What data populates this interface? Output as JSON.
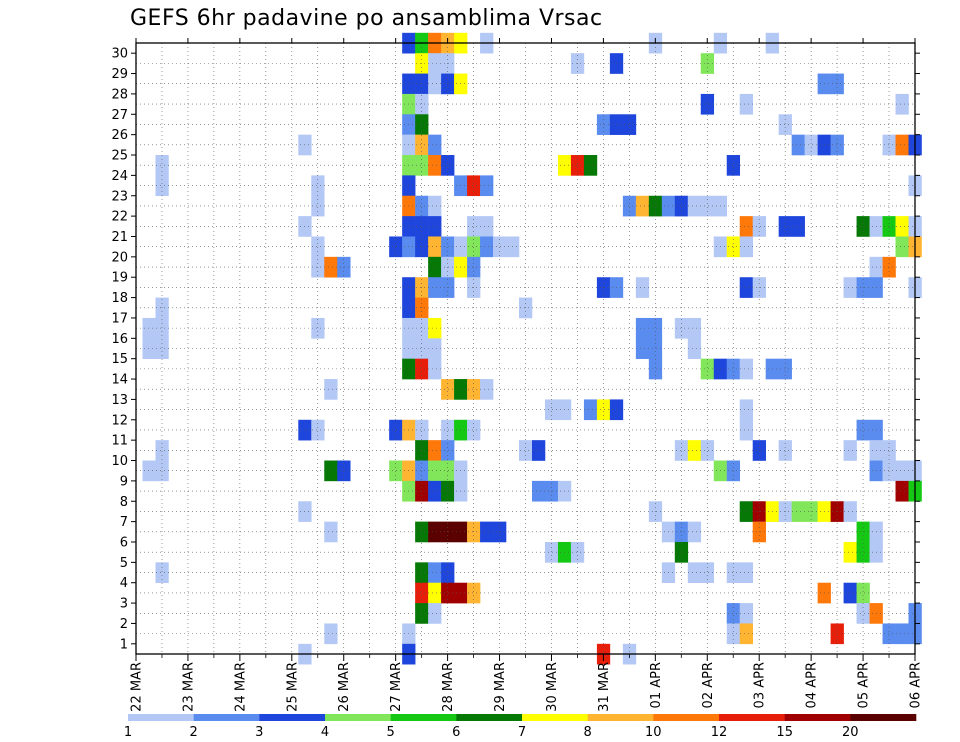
{
  "chart_data": {
    "type": "heatmap",
    "title": "GEFS 6hr padavine po ansamblima Vrsac",
    "xlabel": "",
    "ylabel": "",
    "x_tick_labels": [
      "22 MAR",
      "23 MAR",
      "24 MAR",
      "25 MAR",
      "26 MAR",
      "27 MAR",
      "28 MAR",
      "29 MAR",
      "30 MAR",
      "31 MAR",
      "01 APR",
      "02 APR",
      "03 APR",
      "04 APR",
      "05 APR",
      "06 APR"
    ],
    "y_tick_labels": [
      "1",
      "2",
      "3",
      "4",
      "5",
      "6",
      "7",
      "8",
      "9",
      "10",
      "11",
      "12",
      "13",
      "14",
      "15",
      "16",
      "17",
      "18",
      "19",
      "20",
      "21",
      "22",
      "23",
      "24",
      "25",
      "26",
      "27",
      "28",
      "29",
      "30"
    ],
    "x_range": [
      0,
      60
    ],
    "y_range": [
      0,
      30
    ],
    "grid": true,
    "legend": {
      "placement": "bottom",
      "labels": [
        "1",
        "2",
        "3",
        "4",
        "5",
        "6",
        "7",
        "8",
        "10",
        "12",
        "15",
        "20"
      ],
      "colors": [
        "#b4c8f5",
        "#5a8cf0",
        "#1e46dc",
        "#82e65a",
        "#14c814",
        "#057805",
        "#ffff00",
        "#ffb432",
        "#ff780a",
        "#e61e0a",
        "#a00000",
        "#5a0000"
      ]
    },
    "cells": [
      [
        30,
        21,
        3
      ],
      [
        30,
        22,
        5
      ],
      [
        30,
        23,
        10
      ],
      [
        30,
        24,
        8
      ],
      [
        30,
        25,
        7
      ],
      [
        30,
        27,
        1
      ],
      [
        30,
        40,
        1
      ],
      [
        30,
        45,
        1
      ],
      [
        30,
        49,
        1
      ],
      [
        29,
        22,
        7
      ],
      [
        29,
        23,
        1
      ],
      [
        29,
        24,
        1
      ],
      [
        29,
        34,
        1
      ],
      [
        29,
        37,
        3
      ],
      [
        29,
        44,
        4
      ],
      [
        28,
        21,
        3
      ],
      [
        28,
        22,
        3
      ],
      [
        28,
        23,
        1
      ],
      [
        28,
        24,
        3
      ],
      [
        28,
        25,
        7
      ],
      [
        28,
        53,
        2
      ],
      [
        28,
        54,
        2
      ],
      [
        27,
        21,
        4
      ],
      [
        27,
        22,
        1
      ],
      [
        27,
        44,
        3
      ],
      [
        27,
        47,
        1
      ],
      [
        27,
        59,
        1
      ],
      [
        26,
        21,
        2
      ],
      [
        26,
        22,
        6
      ],
      [
        26,
        36,
        2
      ],
      [
        26,
        37,
        3
      ],
      [
        26,
        38,
        3
      ],
      [
        26,
        50,
        1
      ],
      [
        25,
        13,
        1
      ],
      [
        25,
        21,
        1
      ],
      [
        25,
        22,
        8
      ],
      [
        25,
        23,
        2
      ],
      [
        25,
        51,
        2
      ],
      [
        25,
        52,
        1
      ],
      [
        25,
        53,
        3
      ],
      [
        25,
        54,
        2
      ],
      [
        25,
        58,
        1
      ],
      [
        25,
        59,
        10
      ],
      [
        25,
        60,
        3
      ],
      [
        24,
        2,
        1
      ],
      [
        24,
        21,
        4
      ],
      [
        24,
        22,
        4
      ],
      [
        24,
        23,
        10
      ],
      [
        24,
        24,
        3
      ],
      [
        24,
        33,
        7
      ],
      [
        24,
        34,
        12
      ],
      [
        24,
        35,
        6
      ],
      [
        24,
        46,
        3
      ],
      [
        23,
        2,
        1
      ],
      [
        23,
        14,
        1
      ],
      [
        23,
        21,
        3
      ],
      [
        23,
        25,
        2
      ],
      [
        23,
        26,
        12
      ],
      [
        23,
        27,
        2
      ],
      [
        23,
        60,
        1
      ],
      [
        22,
        14,
        1
      ],
      [
        22,
        21,
        10
      ],
      [
        22,
        22,
        2
      ],
      [
        22,
        23,
        1
      ],
      [
        22,
        38,
        2
      ],
      [
        22,
        39,
        8
      ],
      [
        22,
        40,
        6
      ],
      [
        22,
        41,
        2
      ],
      [
        22,
        42,
        3
      ],
      [
        22,
        43,
        1
      ],
      [
        22,
        44,
        1
      ],
      [
        22,
        45,
        1
      ],
      [
        21,
        13,
        1
      ],
      [
        21,
        21,
        3
      ],
      [
        21,
        22,
        3
      ],
      [
        21,
        23,
        3
      ],
      [
        21,
        26,
        1
      ],
      [
        21,
        27,
        1
      ],
      [
        21,
        47,
        10
      ],
      [
        21,
        48,
        1
      ],
      [
        21,
        50,
        3
      ],
      [
        21,
        51,
        3
      ],
      [
        21,
        56,
        6
      ],
      [
        21,
        57,
        1
      ],
      [
        21,
        58,
        5
      ],
      [
        21,
        59,
        7
      ],
      [
        21,
        60,
        1
      ],
      [
        20,
        14,
        1
      ],
      [
        20,
        20,
        3
      ],
      [
        20,
        21,
        2
      ],
      [
        20,
        22,
        3
      ],
      [
        20,
        23,
        8
      ],
      [
        20,
        24,
        2
      ],
      [
        20,
        25,
        1
      ],
      [
        20,
        26,
        4
      ],
      [
        20,
        27,
        2
      ],
      [
        20,
        28,
        1
      ],
      [
        20,
        29,
        1
      ],
      [
        20,
        45,
        1
      ],
      [
        20,
        46,
        7
      ],
      [
        20,
        47,
        1
      ],
      [
        20,
        59,
        4
      ],
      [
        20,
        60,
        8
      ],
      [
        19,
        14,
        1
      ],
      [
        19,
        15,
        10
      ],
      [
        19,
        16,
        2
      ],
      [
        19,
        23,
        6
      ],
      [
        19,
        24,
        1
      ],
      [
        19,
        25,
        7
      ],
      [
        19,
        26,
        2
      ],
      [
        19,
        57,
        1
      ],
      [
        19,
        58,
        10
      ],
      [
        18,
        21,
        3
      ],
      [
        18,
        22,
        8
      ],
      [
        18,
        23,
        2
      ],
      [
        18,
        24,
        2
      ],
      [
        18,
        26,
        1
      ],
      [
        18,
        36,
        3
      ],
      [
        18,
        37,
        2
      ],
      [
        18,
        39,
        1
      ],
      [
        18,
        47,
        3
      ],
      [
        18,
        48,
        1
      ],
      [
        18,
        55,
        1
      ],
      [
        18,
        56,
        2
      ],
      [
        18,
        57,
        2
      ],
      [
        18,
        60,
        1
      ],
      [
        17,
        2,
        1
      ],
      [
        17,
        21,
        3
      ],
      [
        17,
        22,
        10
      ],
      [
        17,
        30,
        1
      ],
      [
        16,
        1,
        1
      ],
      [
        16,
        2,
        1
      ],
      [
        16,
        14,
        1
      ],
      [
        16,
        21,
        1
      ],
      [
        16,
        22,
        1
      ],
      [
        16,
        23,
        7
      ],
      [
        16,
        39,
        2
      ],
      [
        16,
        40,
        2
      ],
      [
        16,
        42,
        1
      ],
      [
        16,
        43,
        1
      ],
      [
        15,
        1,
        1
      ],
      [
        15,
        2,
        1
      ],
      [
        15,
        21,
        1
      ],
      [
        15,
        22,
        1
      ],
      [
        15,
        23,
        1
      ],
      [
        15,
        39,
        2
      ],
      [
        15,
        40,
        2
      ],
      [
        15,
        43,
        1
      ],
      [
        14,
        21,
        6
      ],
      [
        14,
        22,
        12
      ],
      [
        14,
        23,
        1
      ],
      [
        14,
        40,
        2
      ],
      [
        14,
        44,
        4
      ],
      [
        14,
        45,
        3
      ],
      [
        14,
        46,
        2
      ],
      [
        14,
        47,
        1
      ],
      [
        14,
        49,
        2
      ],
      [
        14,
        50,
        2
      ],
      [
        13,
        15,
        1
      ],
      [
        13,
        24,
        8
      ],
      [
        13,
        25,
        6
      ],
      [
        13,
        26,
        8
      ],
      [
        13,
        27,
        1
      ],
      [
        12,
        32,
        1
      ],
      [
        12,
        33,
        1
      ],
      [
        12,
        35,
        2
      ],
      [
        12,
        36,
        7
      ],
      [
        12,
        37,
        3
      ],
      [
        12,
        47,
        1
      ],
      [
        11,
        13,
        3
      ],
      [
        11,
        14,
        1
      ],
      [
        11,
        20,
        3
      ],
      [
        11,
        21,
        8
      ],
      [
        11,
        22,
        1
      ],
      [
        11,
        24,
        1
      ],
      [
        11,
        25,
        5
      ],
      [
        11,
        26,
        1
      ],
      [
        11,
        47,
        1
      ],
      [
        11,
        56,
        2
      ],
      [
        11,
        57,
        2
      ],
      [
        10,
        2,
        1
      ],
      [
        10,
        22,
        6
      ],
      [
        10,
        23,
        10
      ],
      [
        10,
        24,
        2
      ],
      [
        10,
        30,
        1
      ],
      [
        10,
        31,
        3
      ],
      [
        10,
        42,
        1
      ],
      [
        10,
        43,
        7
      ],
      [
        10,
        44,
        1
      ],
      [
        10,
        48,
        3
      ],
      [
        10,
        50,
        1
      ],
      [
        10,
        55,
        1
      ],
      [
        10,
        57,
        1
      ],
      [
        10,
        58,
        1
      ],
      [
        9,
        1,
        1
      ],
      [
        9,
        2,
        1
      ],
      [
        9,
        15,
        6
      ],
      [
        9,
        16,
        3
      ],
      [
        9,
        20,
        4
      ],
      [
        9,
        21,
        8
      ],
      [
        9,
        22,
        2
      ],
      [
        9,
        23,
        4
      ],
      [
        9,
        24,
        4
      ],
      [
        9,
        25,
        1
      ],
      [
        9,
        45,
        4
      ],
      [
        9,
        46,
        2
      ],
      [
        9,
        57,
        2
      ],
      [
        9,
        58,
        1
      ],
      [
        9,
        59,
        1
      ],
      [
        9,
        60,
        1
      ],
      [
        8,
        21,
        4
      ],
      [
        8,
        22,
        15
      ],
      [
        8,
        23,
        3
      ],
      [
        8,
        24,
        6
      ],
      [
        8,
        25,
        1
      ],
      [
        8,
        31,
        2
      ],
      [
        8,
        32,
        2
      ],
      [
        8,
        33,
        1
      ],
      [
        8,
        59,
        15
      ],
      [
        8,
        60,
        5
      ],
      [
        7,
        13,
        1
      ],
      [
        7,
        40,
        1
      ],
      [
        7,
        47,
        6
      ],
      [
        7,
        48,
        15
      ],
      [
        7,
        49,
        7
      ],
      [
        7,
        50,
        1
      ],
      [
        7,
        51,
        4
      ],
      [
        7,
        52,
        4
      ],
      [
        7,
        53,
        7
      ],
      [
        7,
        54,
        15
      ],
      [
        7,
        55,
        1
      ],
      [
        6,
        15,
        1
      ],
      [
        6,
        22,
        6
      ],
      [
        6,
        23,
        20
      ],
      [
        6,
        24,
        20
      ],
      [
        6,
        25,
        20
      ],
      [
        6,
        26,
        8
      ],
      [
        6,
        27,
        3
      ],
      [
        6,
        28,
        3
      ],
      [
        6,
        41,
        1
      ],
      [
        6,
        42,
        2
      ],
      [
        6,
        43,
        1
      ],
      [
        6,
        48,
        10
      ],
      [
        6,
        56,
        5
      ],
      [
        6,
        57,
        1
      ],
      [
        5,
        32,
        1
      ],
      [
        5,
        33,
        5
      ],
      [
        5,
        34,
        1
      ],
      [
        5,
        42,
        6
      ],
      [
        5,
        55,
        7
      ],
      [
        5,
        56,
        5
      ],
      [
        5,
        57,
        1
      ],
      [
        4,
        2,
        1
      ],
      [
        4,
        22,
        6
      ],
      [
        4,
        23,
        2
      ],
      [
        4,
        24,
        3
      ],
      [
        4,
        41,
        1
      ],
      [
        4,
        43,
        1
      ],
      [
        4,
        44,
        1
      ],
      [
        4,
        46,
        1
      ],
      [
        4,
        47,
        1
      ],
      [
        3,
        22,
        12
      ],
      [
        3,
        23,
        7
      ],
      [
        3,
        24,
        15
      ],
      [
        3,
        25,
        15
      ],
      [
        3,
        26,
        8
      ],
      [
        3,
        53,
        10
      ],
      [
        3,
        55,
        3
      ],
      [
        3,
        56,
        4
      ],
      [
        2,
        22,
        6
      ],
      [
        2,
        23,
        1
      ],
      [
        2,
        46,
        2
      ],
      [
        2,
        47,
        1
      ],
      [
        2,
        56,
        1
      ],
      [
        2,
        57,
        10
      ],
      [
        2,
        60,
        2
      ],
      [
        1,
        15,
        1
      ],
      [
        1,
        21,
        1
      ],
      [
        1,
        46,
        1
      ],
      [
        1,
        47,
        8
      ],
      [
        1,
        54,
        12
      ],
      [
        1,
        58,
        2
      ],
      [
        1,
        59,
        2
      ],
      [
        1,
        60,
        2
      ],
      [
        0,
        13,
        1
      ],
      [
        0,
        21,
        3
      ],
      [
        0,
        36,
        12
      ],
      [
        0,
        38,
        1
      ]
    ]
  }
}
